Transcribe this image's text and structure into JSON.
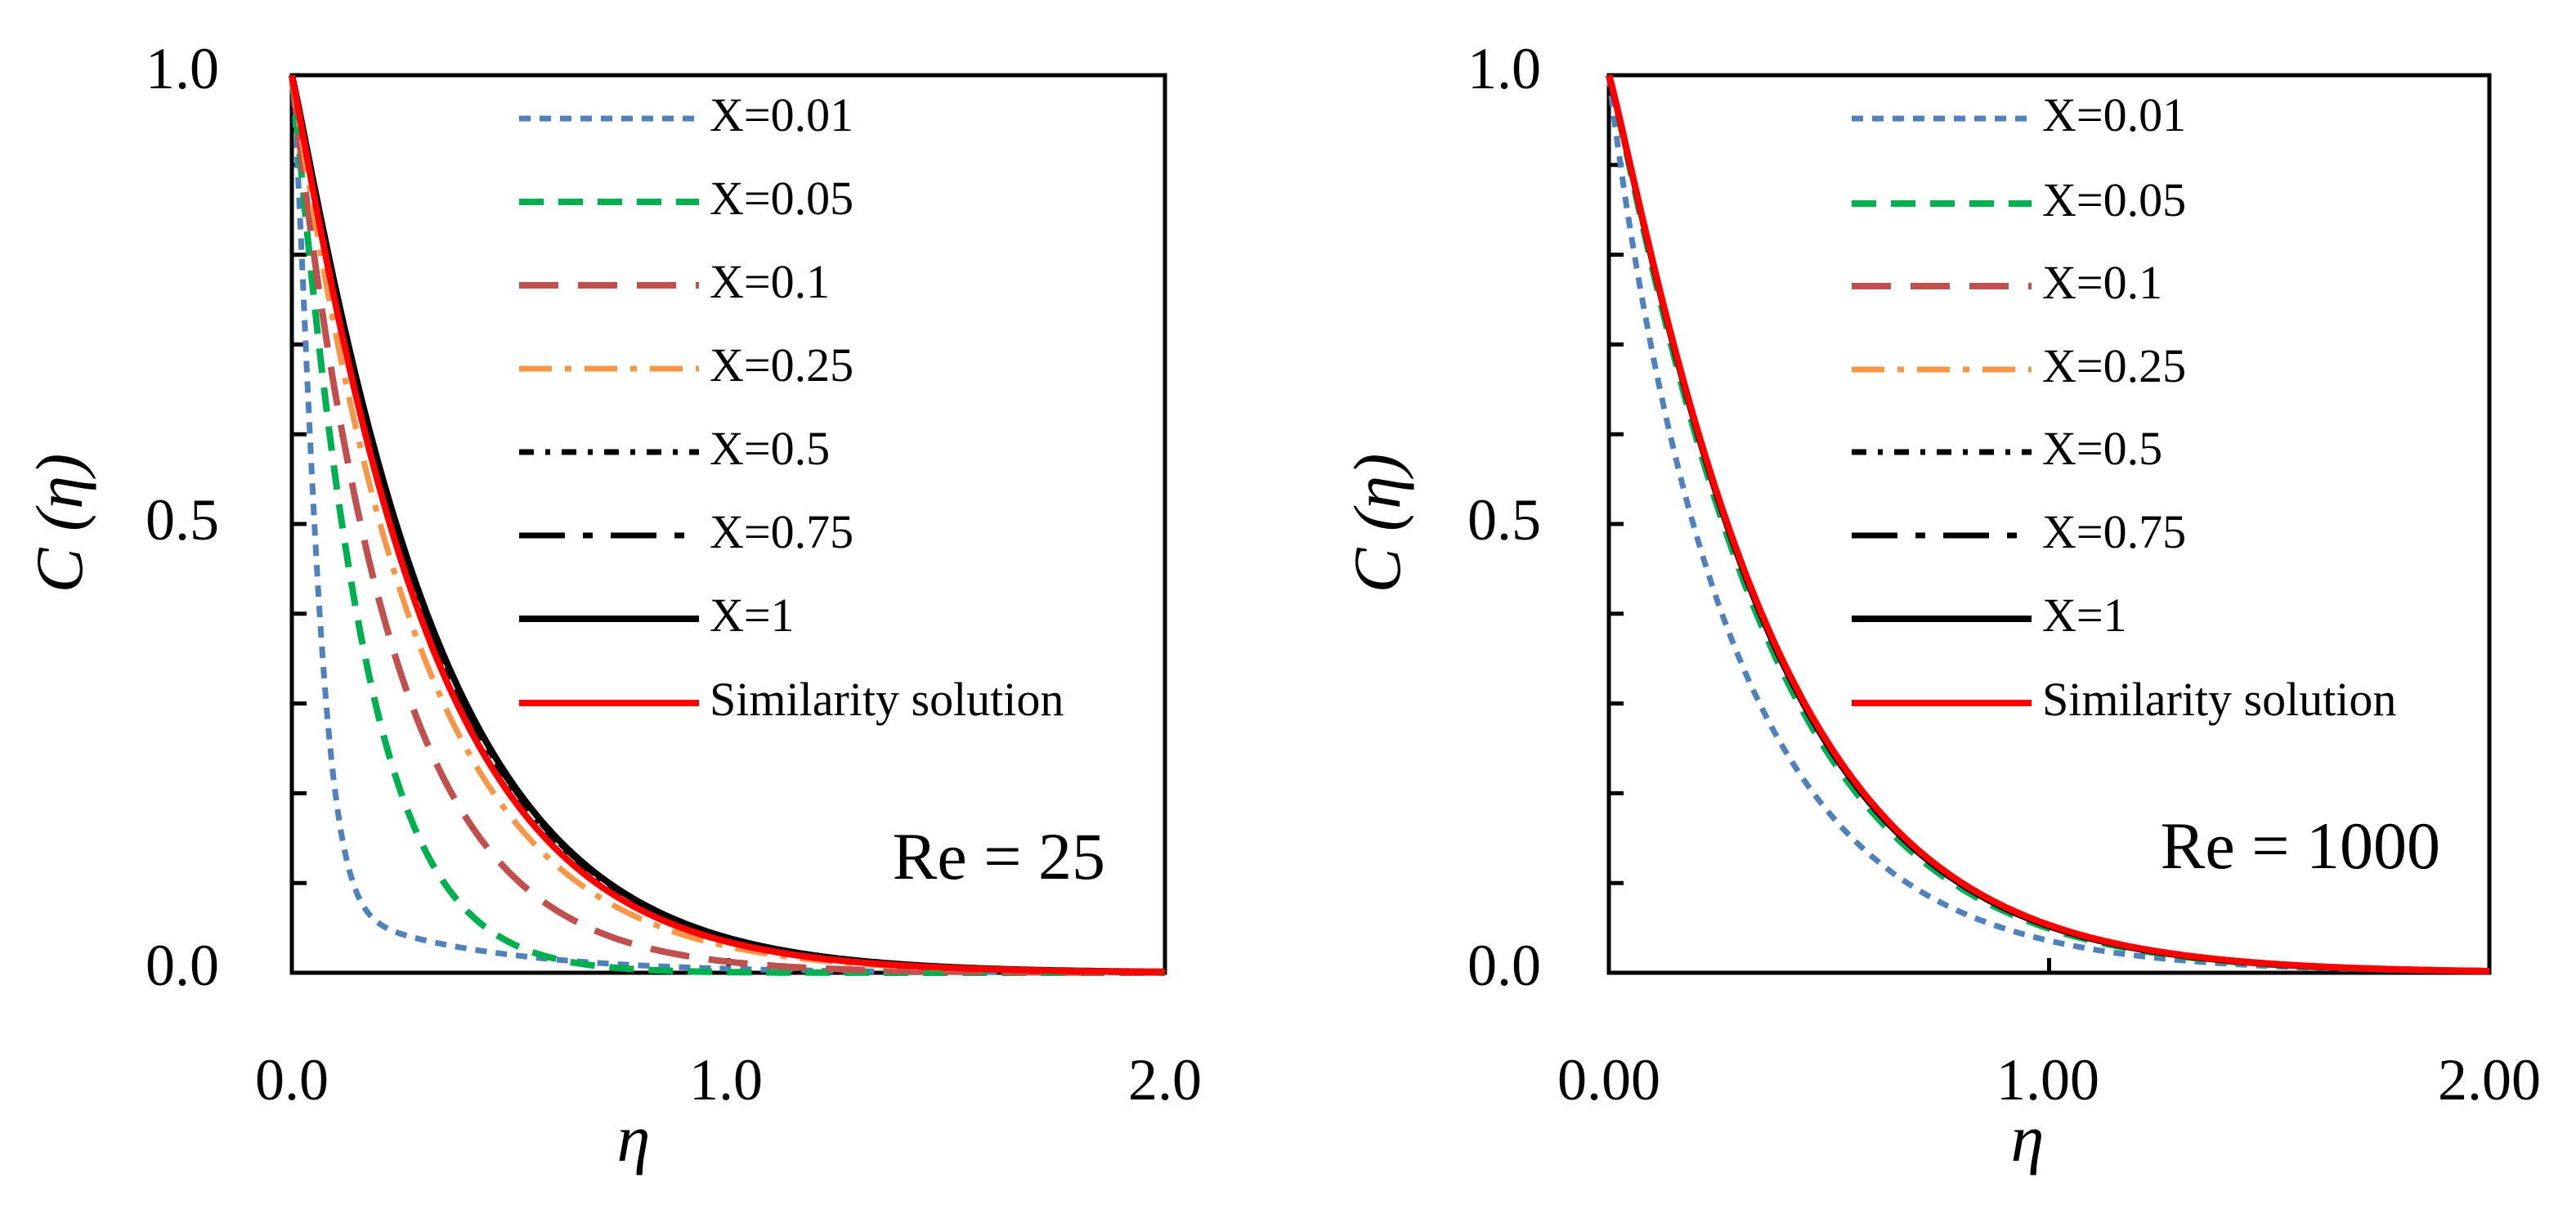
{
  "chart_data": [
    {
      "type": "line",
      "annotation": "Re = 25",
      "xlabel": "η",
      "ylabel_main": "C",
      "ylabel_var": "(η)",
      "xlim": [
        0,
        2
      ],
      "ylim": [
        0,
        1
      ],
      "xticks": [
        0,
        1,
        2
      ],
      "xtick_labels": [
        "0.0",
        "1.0",
        "2.0"
      ],
      "yticks": [
        0,
        0.5,
        1
      ],
      "ytick_labels": [
        "0.0",
        "0.5",
        "1.0"
      ],
      "y_minor_step": 0.1,
      "legend_position": "top-right",
      "series": [
        {
          "name": "X=0.01",
          "color": "#4F81BD",
          "style": "short-dash",
          "curve": {
            "amp": 1.0,
            "k": 16.0,
            "p": 1.4,
            "tail_k": 3.0,
            "tail_w": 0.09
          }
        },
        {
          "name": "X=0.05",
          "color": "#00B050",
          "style": "dash",
          "curve": {
            "amp": 1.0,
            "k": 6.2,
            "p": 1.08,
            "tail_k": 0,
            "tail_w": 0
          }
        },
        {
          "name": "X=0.1",
          "color": "#C0504D",
          "style": "long-dash",
          "curve": {
            "amp": 1.0,
            "k": 4.4,
            "p": 1.0,
            "tail_k": 0,
            "tail_w": 0
          }
        },
        {
          "name": "X=0.25",
          "color": "#F79646",
          "style": "dash-dot",
          "curve": {
            "amp": 1.0,
            "k": 3.45,
            "p": 1.02,
            "tail_k": 0,
            "tail_w": 0
          }
        },
        {
          "name": "X=0.5",
          "color": "#000000",
          "style": "short-dash-dot",
          "curve": {
            "amp": 1.0,
            "k": 3.1,
            "p": 1.06,
            "tail_k": 0,
            "tail_w": 0
          }
        },
        {
          "name": "X=0.75",
          "color": "#000000",
          "style": "long-dash-dot",
          "curve": {
            "amp": 1.0,
            "k": 3.02,
            "p": 1.07,
            "tail_k": 0,
            "tail_w": 0
          }
        },
        {
          "name": "X=1",
          "color": "#000000",
          "style": "solid",
          "curve": {
            "amp": 1.0,
            "k": 2.98,
            "p": 1.08,
            "tail_k": 0,
            "tail_w": 0
          }
        },
        {
          "name": "Similarity solution",
          "color": "#FF0000",
          "style": "solid",
          "curve": {
            "amp": 1.0,
            "k": 3.15,
            "p": 1.06,
            "tail_k": 0,
            "tail_w": 0
          }
        }
      ]
    },
    {
      "type": "line",
      "annotation": "Re = 1000",
      "xlabel": "η",
      "ylabel_main": "C",
      "ylabel_var": "(η)",
      "xlim": [
        0,
        2
      ],
      "ylim": [
        0,
        1
      ],
      "xticks": [
        0,
        1,
        2
      ],
      "xtick_labels": [
        "0.00",
        "1.00",
        "2.00"
      ],
      "yticks": [
        0,
        0.5,
        1
      ],
      "ytick_labels": [
        "0.0",
        "0.5",
        "1.0"
      ],
      "y_minor_step": 0.1,
      "legend_position": "top-right",
      "series": [
        {
          "name": "X=0.01",
          "color": "#4F81BD",
          "style": "short-dash",
          "curve": {
            "amp": 1.0,
            "k": 3.55,
            "p": 0.95,
            "tail_k": 0,
            "tail_w": 0
          }
        },
        {
          "name": "X=0.05",
          "color": "#00B050",
          "style": "dash",
          "curve": {
            "amp": 1.0,
            "k": 2.75,
            "p": 1.09,
            "tail_k": 0,
            "tail_w": 0
          }
        },
        {
          "name": "X=0.1",
          "color": "#C0504D",
          "style": "long-dash",
          "curve": {
            "amp": 1.0,
            "k": 2.68,
            "p": 1.1,
            "tail_k": 0,
            "tail_w": 0
          }
        },
        {
          "name": "X=0.25",
          "color": "#F79646",
          "style": "dash-dot",
          "curve": {
            "amp": 1.0,
            "k": 2.68,
            "p": 1.1,
            "tail_k": 0,
            "tail_w": 0
          }
        },
        {
          "name": "X=0.5",
          "color": "#000000",
          "style": "short-dash-dot",
          "curve": {
            "amp": 1.0,
            "k": 2.68,
            "p": 1.1,
            "tail_k": 0,
            "tail_w": 0
          }
        },
        {
          "name": "X=0.75",
          "color": "#000000",
          "style": "long-dash-dot",
          "curve": {
            "amp": 1.0,
            "k": 2.68,
            "p": 1.1,
            "tail_k": 0,
            "tail_w": 0
          }
        },
        {
          "name": "X=1",
          "color": "#000000",
          "style": "solid",
          "curve": {
            "amp": 1.0,
            "k": 2.68,
            "p": 1.1,
            "tail_k": 0,
            "tail_w": 0
          }
        },
        {
          "name": "Similarity solution",
          "color": "#FF0000",
          "style": "solid",
          "curve": {
            "amp": 1.0,
            "k": 2.66,
            "p": 1.1,
            "tail_k": 0,
            "tail_w": 0
          }
        }
      ]
    }
  ]
}
